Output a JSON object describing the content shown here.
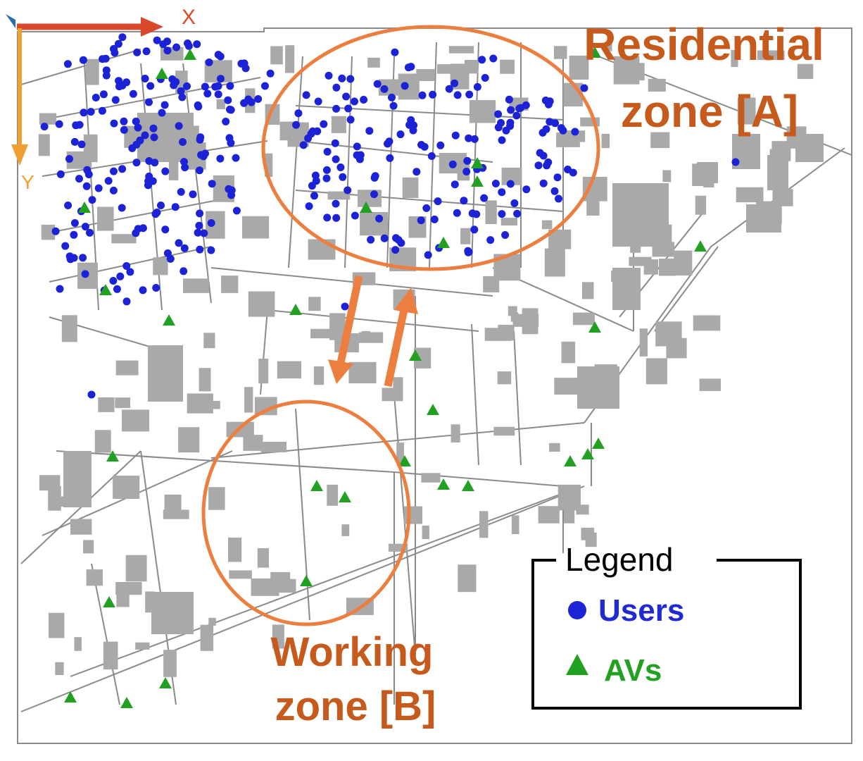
{
  "axes": {
    "x_label": "X",
    "y_label": "Y",
    "x_color": "#d9482a",
    "y_color": "#f0a030"
  },
  "zones": {
    "residential": {
      "line1": "Residential",
      "line2": "zone [A]"
    },
    "working": {
      "line1": "Working",
      "line2": "zone [B]"
    }
  },
  "legend": {
    "title": "Legend",
    "users_label": "Users",
    "avs_label": "AVs"
  },
  "colors": {
    "zone_outline": "#ec7f3f",
    "zone_text": "#c55a1c",
    "user": "#1c22d6",
    "av": "#22a022",
    "building": "#a8a8a8",
    "road": "#7a7a7a"
  },
  "icons": {
    "user_marker": "blue-dot-icon",
    "av_marker": "green-triangle-icon"
  }
}
